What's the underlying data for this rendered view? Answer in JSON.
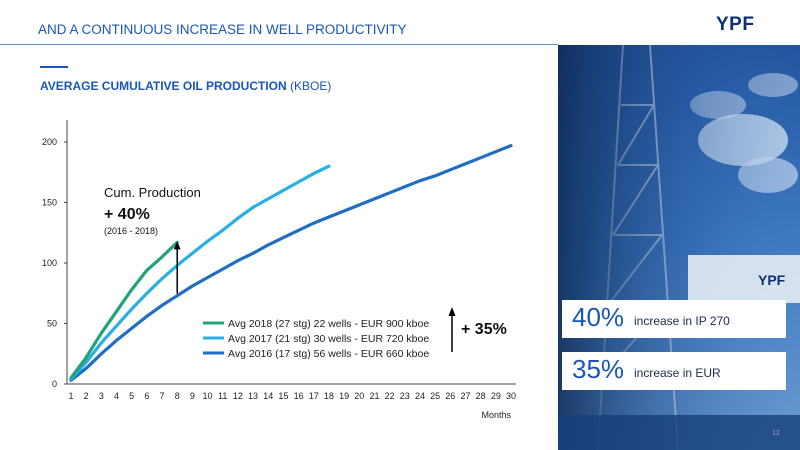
{
  "header": {
    "title": "AND A CONTINUOUS INCREASE IN WELL PRODUCTIVITY",
    "logo": "YPF"
  },
  "section": {
    "title_bold": "AVERAGE CUMULATIVE OIL PRODUCTION",
    "title_unit": "(KBOE)"
  },
  "annotations": {
    "cum_label": "Cum. Production",
    "cum_value": "+ 40%",
    "cum_period": "(2016 - 2018)",
    "eur_value": "+ 35%"
  },
  "stats": [
    {
      "number": "40%",
      "text": "increase in IP 270"
    },
    {
      "number": "35%",
      "text": "increase in EUR"
    }
  ],
  "photo": {
    "sign_text": "YPF"
  },
  "page_number": "12",
  "colors": {
    "accent": "#1a56b8",
    "series_2018": "#1fa37a",
    "series_2017": "#29aee6",
    "series_2016": "#1f6ec4"
  },
  "chart_data": {
    "type": "line",
    "xlabel": "Months",
    "ylabel": "",
    "xlim": [
      1,
      30
    ],
    "ylim": [
      0,
      200
    ],
    "x_ticks": [
      1,
      2,
      3,
      4,
      5,
      6,
      7,
      8,
      9,
      10,
      11,
      12,
      13,
      14,
      15,
      16,
      17,
      18,
      19,
      20,
      21,
      22,
      23,
      24,
      25,
      26,
      27,
      28,
      29,
      30
    ],
    "y_ticks": [
      0,
      50,
      100,
      150,
      200
    ],
    "grid": false,
    "legend": "center",
    "series": [
      {
        "name": "Avg 2018 (27 stg) 22 wells - EUR 900 kboe",
        "color": "#1fa37a",
        "x": [
          1,
          2,
          3,
          4,
          5,
          6,
          7,
          8
        ],
        "y": [
          5,
          22,
          42,
          60,
          78,
          94,
          105,
          117
        ]
      },
      {
        "name": "Avg 2017 (21 stg) 30 wells - EUR 720 kboe",
        "color": "#29aee6",
        "x": [
          1,
          2,
          3,
          4,
          5,
          6,
          7,
          8,
          9,
          10,
          11,
          12,
          13,
          14,
          15,
          16,
          17,
          18
        ],
        "y": [
          4,
          18,
          34,
          48,
          62,
          75,
          87,
          98,
          108,
          118,
          127,
          137,
          146,
          153,
          160,
          167,
          174,
          180
        ]
      },
      {
        "name": "Avg 2016 (17 stg) 56 wells - EUR 660 kboe",
        "color": "#1f6ec4",
        "x": [
          1,
          2,
          3,
          4,
          5,
          6,
          7,
          8,
          9,
          10,
          11,
          12,
          13,
          14,
          15,
          16,
          17,
          18,
          19,
          20,
          21,
          22,
          23,
          24,
          25,
          26,
          27,
          28,
          29,
          30
        ],
        "y": [
          3,
          13,
          25,
          36,
          46,
          56,
          65,
          73,
          81,
          88,
          95,
          102,
          108,
          115,
          121,
          127,
          133,
          138,
          143,
          148,
          153,
          158,
          163,
          168,
          172,
          177,
          182,
          187,
          192,
          197
        ]
      }
    ]
  }
}
